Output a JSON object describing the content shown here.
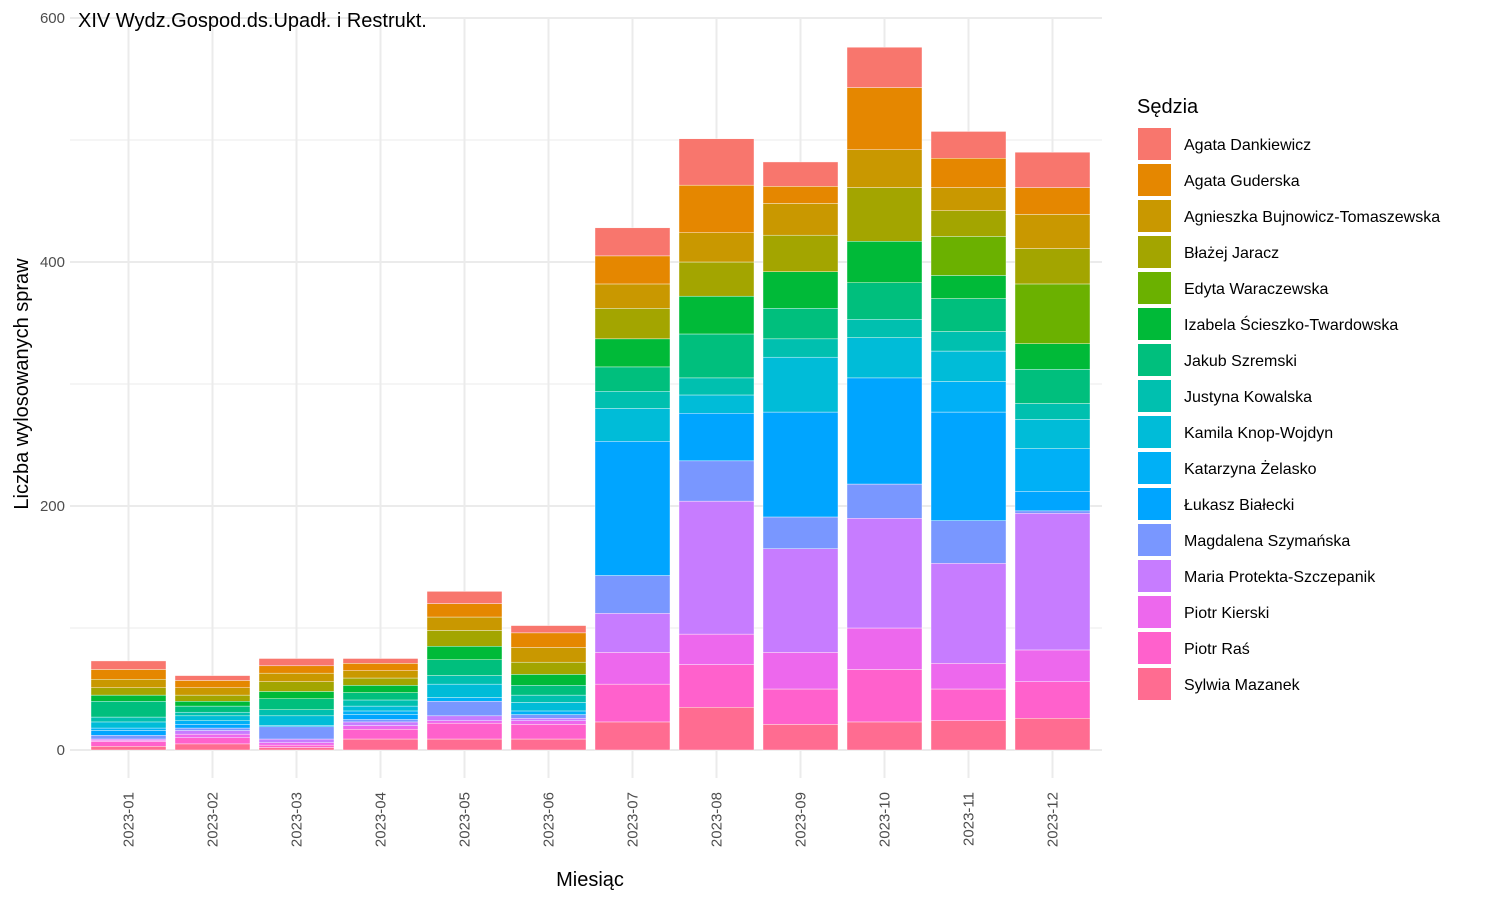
{
  "chart_data": {
    "type": "bar",
    "stacked": true,
    "title": "XIV Wydz.Gospod.ds.Upadł. i Restrukt.",
    "xlabel": "Miesiąc",
    "ylabel": "Liczba wylosowanych spraw",
    "ylim": [
      0,
      600
    ],
    "yticks": [
      0,
      200,
      400,
      600
    ],
    "grid": true,
    "legend_title": "Sędzia",
    "legend_position": "right",
    "categories": [
      "2023-01",
      "2023-02",
      "2023-03",
      "2023-04",
      "2023-05",
      "2023-06",
      "2023-07",
      "2023-08",
      "2023-09",
      "2023-10",
      "2023-11",
      "2023-12"
    ],
    "series": [
      {
        "name": "Agata Dankiewicz",
        "color": "#F8766D",
        "values": [
          7,
          4,
          6,
          4,
          10,
          6,
          23,
          38,
          20,
          33,
          22,
          29
        ]
      },
      {
        "name": "Agata Guderska",
        "color": "#E58700",
        "values": [
          8,
          6,
          6,
          6,
          11,
          12,
          23,
          39,
          14,
          51,
          24,
          22
        ]
      },
      {
        "name": "Agnieszka Bujnowicz-Tomaszewska",
        "color": "#C99800",
        "values": [
          7,
          6,
          7,
          6,
          11,
          12,
          20,
          24,
          26,
          31,
          19,
          28
        ]
      },
      {
        "name": "Błażej Jaracz",
        "color": "#A3A500",
        "values": [
          6,
          5,
          8,
          6,
          13,
          10,
          25,
          28,
          30,
          44,
          21,
          29
        ]
      },
      {
        "name": "Edyta Waraczewska",
        "color": "#6BB100",
        "values": [
          0,
          0,
          0,
          0,
          0,
          0,
          0,
          0,
          0,
          0,
          32,
          49
        ]
      },
      {
        "name": "Izabela Ścieszko-Twardowska",
        "color": "#00BA38",
        "values": [
          5,
          4,
          6,
          6,
          11,
          9,
          23,
          31,
          30,
          34,
          19,
          21
        ]
      },
      {
        "name": "Jakub Szremski",
        "color": "#00BF7D",
        "values": [
          13,
          5,
          9,
          6,
          13,
          8,
          20,
          36,
          25,
          30,
          27,
          28
        ]
      },
      {
        "name": "Justyna Kowalska",
        "color": "#00C0AF",
        "values": [
          4,
          3,
          5,
          5,
          7,
          6,
          14,
          14,
          15,
          15,
          16,
          13
        ]
      },
      {
        "name": "Kamila Knop-Wojdyn",
        "color": "#00BCD8",
        "values": [
          5,
          4,
          8,
          4,
          11,
          7,
          27,
          15,
          45,
          33,
          25,
          24
        ]
      },
      {
        "name": "Katarzyna Żelasko",
        "color": "#00B0F6",
        "values": [
          2,
          3,
          1,
          3,
          3,
          3,
          0,
          0,
          0,
          0,
          25,
          35
        ]
      },
      {
        "name": "Łukasz Białecki",
        "color": "#00A5FF",
        "values": [
          4,
          3,
          0,
          4,
          0,
          0,
          110,
          39,
          86,
          87,
          89,
          16
        ]
      },
      {
        "name": "Magdalena Szymańska",
        "color": "#7997FF",
        "values": [
          3,
          2,
          10,
          2,
          12,
          3,
          31,
          33,
          26,
          28,
          35,
          2
        ]
      },
      {
        "name": "Maria Protekta-Szczepanik",
        "color": "#C77CFF",
        "values": [
          1,
          3,
          3,
          3,
          4,
          2,
          32,
          109,
          85,
          90,
          82,
          112
        ]
      },
      {
        "name": "Piotr Kierski",
        "color": "#ED68ED",
        "values": [
          1,
          3,
          2,
          3,
          2,
          3,
          26,
          25,
          30,
          34,
          21,
          26
        ]
      },
      {
        "name": "Piotr Raś",
        "color": "#FF61CC",
        "values": [
          4,
          5,
          2,
          8,
          13,
          12,
          31,
          35,
          29,
          43,
          26,
          30
        ]
      },
      {
        "name": "Sylwia Mazanek",
        "color": "#FF6C91",
        "values": [
          3,
          5,
          2,
          9,
          9,
          9,
          23,
          35,
          21,
          23,
          24,
          26
        ]
      }
    ]
  }
}
